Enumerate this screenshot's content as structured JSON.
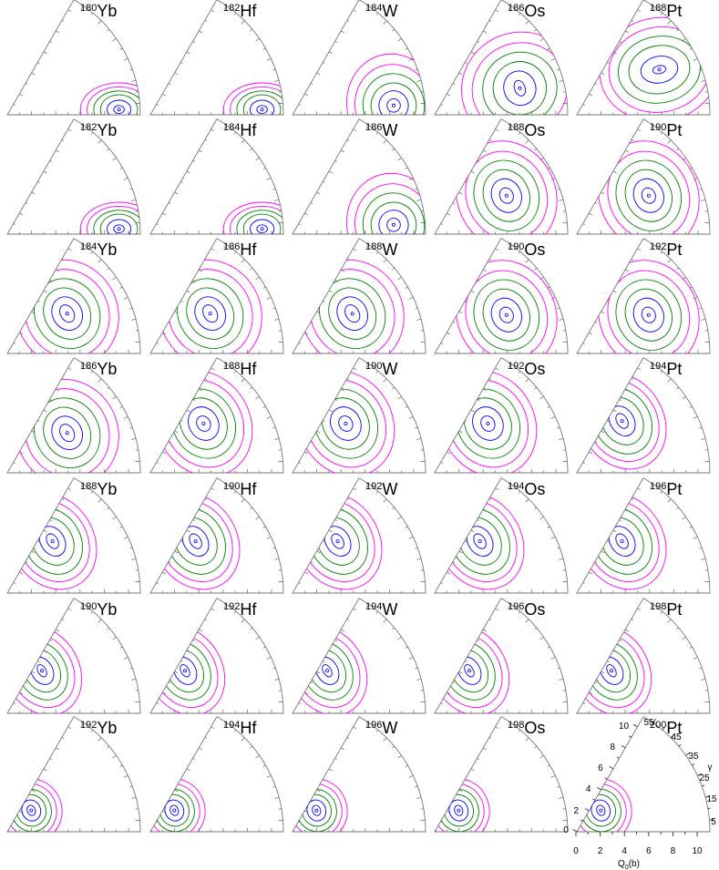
{
  "figure": {
    "columns": 5,
    "rows": 7,
    "elements": [
      "Yb",
      "Hf",
      "W",
      "Os",
      "Pt"
    ],
    "rows_data": [
      {
        "panels": [
          {
            "mass": "180",
            "symbol": "Yb",
            "type": "prolate_small"
          },
          {
            "mass": "182",
            "symbol": "Hf",
            "type": "prolate_small"
          },
          {
            "mass": "184",
            "symbol": "W",
            "type": "prolate_mid"
          },
          {
            "mass": "186",
            "symbol": "Os",
            "type": "prolate_wide"
          },
          {
            "mass": "188",
            "symbol": "Pt",
            "type": "triaxial_high"
          }
        ]
      },
      {
        "panels": [
          {
            "mass": "182",
            "symbol": "Yb",
            "type": "prolate_small"
          },
          {
            "mass": "184",
            "symbol": "Hf",
            "type": "prolate_small"
          },
          {
            "mass": "186",
            "symbol": "W",
            "type": "prolate_mid"
          },
          {
            "mass": "188",
            "symbol": "Os",
            "type": "triaxial_mid"
          },
          {
            "mass": "190",
            "symbol": "Pt",
            "type": "triaxial_mid"
          }
        ]
      },
      {
        "panels": [
          {
            "mass": "184",
            "symbol": "Yb",
            "type": "two_min"
          },
          {
            "mass": "186",
            "symbol": "Hf",
            "type": "two_min"
          },
          {
            "mass": "188",
            "symbol": "W",
            "type": "two_min"
          },
          {
            "mass": "190",
            "symbol": "Os",
            "type": "triaxial_mid"
          },
          {
            "mass": "192",
            "symbol": "Pt",
            "type": "triaxial_mid"
          }
        ]
      },
      {
        "panels": [
          {
            "mass": "186",
            "symbol": "Yb",
            "type": "two_min"
          },
          {
            "mass": "188",
            "symbol": "Hf",
            "type": "oblate_big"
          },
          {
            "mass": "190",
            "symbol": "W",
            "type": "oblate_big"
          },
          {
            "mass": "192",
            "symbol": "Os",
            "type": "oblate_big"
          },
          {
            "mass": "194",
            "symbol": "Pt",
            "type": "oblate_mid"
          }
        ]
      },
      {
        "panels": [
          {
            "mass": "188",
            "symbol": "Yb",
            "type": "oblate_mid"
          },
          {
            "mass": "190",
            "symbol": "Hf",
            "type": "oblate_mid"
          },
          {
            "mass": "192",
            "symbol": "W",
            "type": "oblate_mid"
          },
          {
            "mass": "194",
            "symbol": "Os",
            "type": "oblate_mid"
          },
          {
            "mass": "196",
            "symbol": "Pt",
            "type": "oblate_mid"
          }
        ]
      },
      {
        "panels": [
          {
            "mass": "190",
            "symbol": "Yb",
            "type": "oblate_small"
          },
          {
            "mass": "192",
            "symbol": "Hf",
            "type": "oblate_small"
          },
          {
            "mass": "194",
            "symbol": "W",
            "type": "oblate_small"
          },
          {
            "mass": "196",
            "symbol": "Os",
            "type": "oblate_small"
          },
          {
            "mass": "198",
            "symbol": "Pt",
            "type": "oblate_small"
          }
        ]
      },
      {
        "panels": [
          {
            "mass": "192",
            "symbol": "Yb",
            "type": "sph_oblate"
          },
          {
            "mass": "194",
            "symbol": "Hf",
            "type": "sph_oblate"
          },
          {
            "mass": "196",
            "symbol": "W",
            "type": "sph_oblate"
          },
          {
            "mass": "198",
            "symbol": "Os",
            "type": "sph_oblate"
          },
          {
            "mass": "200",
            "symbol": "Pt",
            "type": "sph_oblate"
          }
        ]
      }
    ],
    "axes_panel": {
      "x_ticks": [
        "0",
        "2",
        "4",
        "6",
        "8",
        "10"
      ],
      "oblique_ticks": [
        "0",
        "2",
        "4",
        "6",
        "8",
        "10"
      ],
      "gamma_ticks": [
        "5",
        "15",
        "25",
        "35",
        "45",
        "55"
      ],
      "x_label": "Q",
      "x_label_sub": "0",
      "x_label_unit": "(b)",
      "gamma_label": "γ"
    },
    "contour_colors": {
      "inner": "#0000ff",
      "middle": "#008000",
      "outer": "#ff00ff"
    }
  }
}
